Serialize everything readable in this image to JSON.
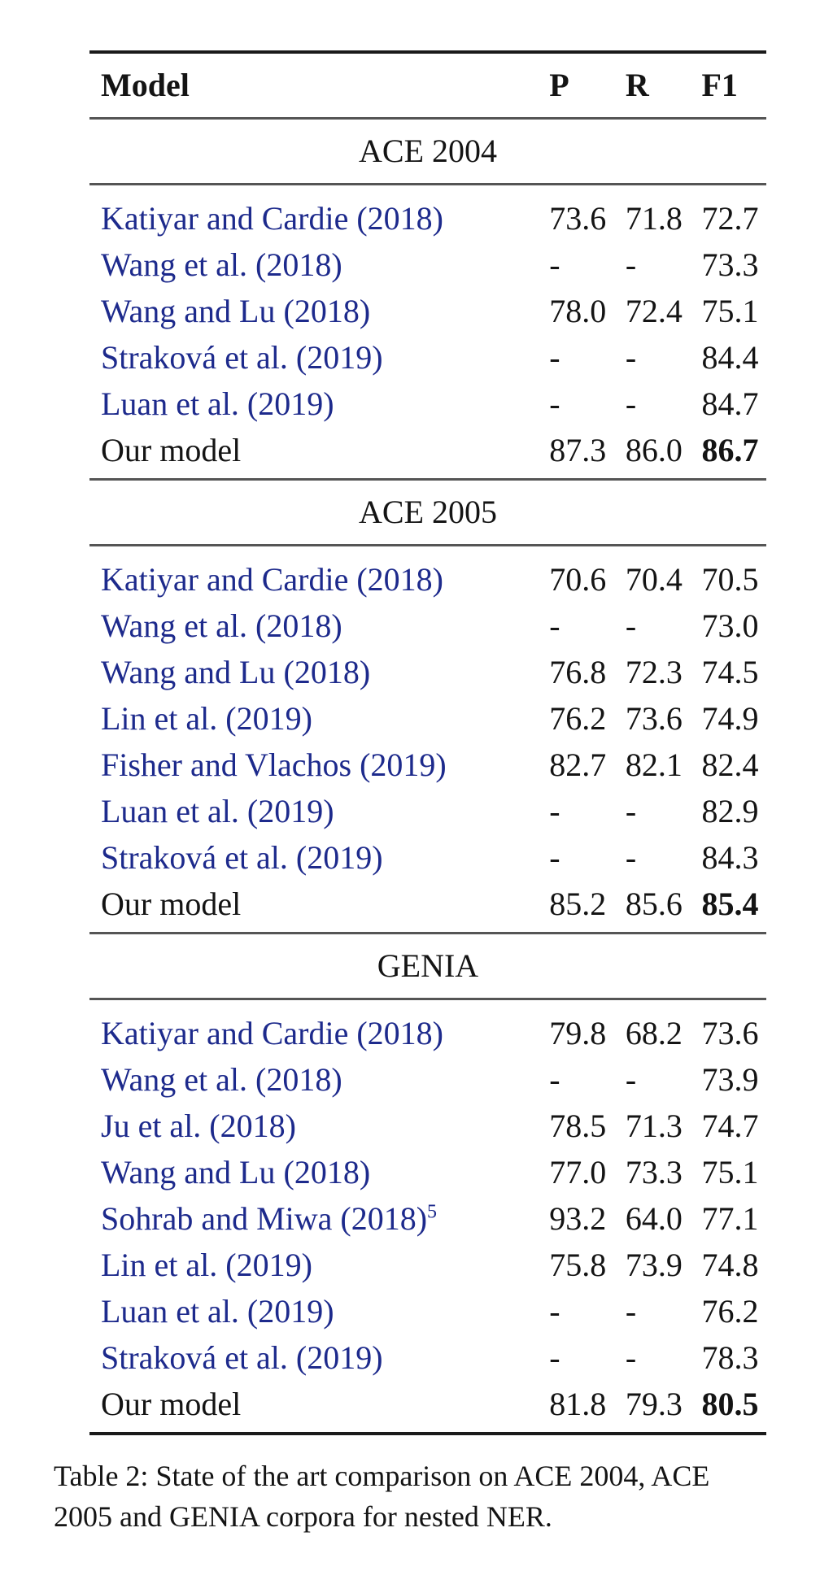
{
  "header": {
    "model": "Model",
    "p": "P",
    "r": "R",
    "f1": "F1"
  },
  "sections": [
    {
      "title": "ACE 2004",
      "rows": [
        {
          "model": "Katiyar and Cardie (2018)",
          "p": "73.6",
          "r": "71.8",
          "f1": "72.7"
        },
        {
          "model": "Wang et al. (2018)",
          "p": "-",
          "r": "-",
          "f1": "73.3"
        },
        {
          "model": "Wang and Lu (2018)",
          "p": "78.0",
          "r": "72.4",
          "f1": "75.1"
        },
        {
          "model": "Straková et al. (2019)",
          "p": "-",
          "r": "-",
          "f1": "84.4"
        },
        {
          "model": "Luan et al. (2019)",
          "p": "-",
          "r": "-",
          "f1": "84.7"
        },
        {
          "model": "Our model",
          "p": "87.3",
          "r": "86.0",
          "f1": "86.7"
        }
      ]
    },
    {
      "title": "ACE 2005",
      "rows": [
        {
          "model": "Katiyar and Cardie (2018)",
          "p": "70.6",
          "r": "70.4",
          "f1": "70.5"
        },
        {
          "model": "Wang et al. (2018)",
          "p": "-",
          "r": "-",
          "f1": "73.0"
        },
        {
          "model": "Wang and Lu (2018)",
          "p": "76.8",
          "r": "72.3",
          "f1": "74.5"
        },
        {
          "model": "Lin et al. (2019)",
          "p": "76.2",
          "r": "73.6",
          "f1": "74.9"
        },
        {
          "model": "Fisher and Vlachos (2019)",
          "p": "82.7",
          "r": "82.1",
          "f1": "82.4"
        },
        {
          "model": "Luan et al. (2019)",
          "p": "-",
          "r": "-",
          "f1": "82.9"
        },
        {
          "model": "Straková et al. (2019)",
          "p": "-",
          "r": "-",
          "f1": "84.3"
        },
        {
          "model": "Our model",
          "p": "85.2",
          "r": "85.6",
          "f1": "85.4"
        }
      ]
    },
    {
      "title": "GENIA",
      "rows": [
        {
          "model": "Katiyar and Cardie (2018)",
          "p": "79.8",
          "r": "68.2",
          "f1": "73.6"
        },
        {
          "model": "Wang et al. (2018)",
          "p": "-",
          "r": "-",
          "f1": "73.9"
        },
        {
          "model": "Ju et al. (2018)",
          "p": "78.5",
          "r": "71.3",
          "f1": "74.7"
        },
        {
          "model": "Wang and Lu (2018)",
          "p": "77.0",
          "r": "73.3",
          "f1": "75.1"
        },
        {
          "model": "Sohrab and Miwa (2018)",
          "footnote": "5",
          "p": "93.2",
          "r": "64.0",
          "f1": "77.1"
        },
        {
          "model": "Lin et al. (2019)",
          "p": "75.8",
          "r": "73.9",
          "f1": "74.8"
        },
        {
          "model": "Luan et al. (2019)",
          "p": "-",
          "r": "-",
          "f1": "76.2"
        },
        {
          "model": "Straková et al. (2019)",
          "p": "-",
          "r": "-",
          "f1": "78.3"
        },
        {
          "model": "Our model",
          "p": "81.8",
          "r": "79.3",
          "f1": "80.5"
        }
      ]
    }
  ],
  "caption": {
    "line1": "Table 2: State of the art comparison on ACE 2004, ACE",
    "line2": "2005 and GENIA corpora for nested NER."
  },
  "colors": {
    "link": "#1d2a8c",
    "text": "#141414"
  }
}
